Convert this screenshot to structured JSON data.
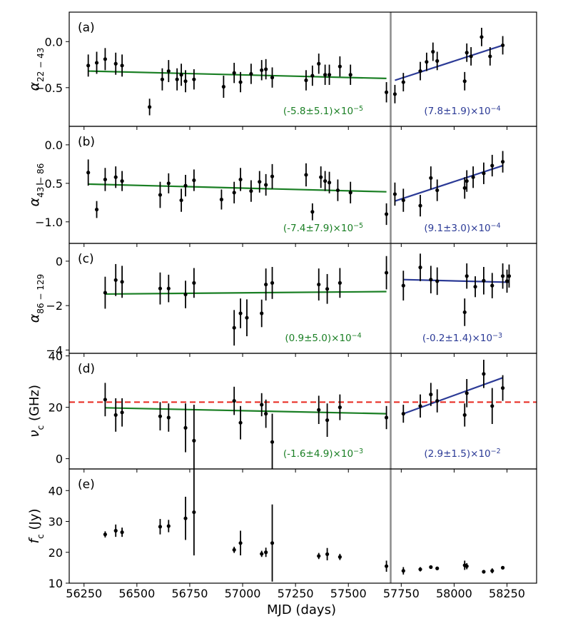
{
  "chart_data": {
    "type": "scatter",
    "xlabel": "MJD (days)",
    "xlim": [
      56180,
      58390
    ],
    "x_ticks": [
      56250,
      56500,
      56750,
      57000,
      57250,
      57500,
      57750,
      58000,
      58250
    ],
    "divider_x": 57700,
    "colors": {
      "green": "#1a7f24",
      "blue": "#2b3a96",
      "red": "#e8261c",
      "divider": "#8c8c8c",
      "points": "#000000"
    },
    "panels": [
      {
        "label": "(a)",
        "ylabel_main": "α",
        "ylabel_sub": "22 − 43",
        "ylim": [
          -0.92,
          0.32
        ],
        "y_ticks": [
          0.0,
          -0.5
        ],
        "y_tick_labels": [
          "0.0",
          "−0.5"
        ],
        "points": [
          {
            "x": 56270,
            "y": -0.26,
            "err": 0.12
          },
          {
            "x": 56310,
            "y": -0.23,
            "err": 0.12
          },
          {
            "x": 56350,
            "y": -0.19,
            "err": 0.12
          },
          {
            "x": 56400,
            "y": -0.24,
            "err": 0.12
          },
          {
            "x": 56430,
            "y": -0.26,
            "err": 0.12
          },
          {
            "x": 56560,
            "y": -0.71,
            "err": 0.09
          },
          {
            "x": 56620,
            "y": -0.41,
            "err": 0.12
          },
          {
            "x": 56650,
            "y": -0.32,
            "err": 0.12
          },
          {
            "x": 56690,
            "y": -0.41,
            "err": 0.12
          },
          {
            "x": 56710,
            "y": -0.36,
            "err": 0.12
          },
          {
            "x": 56730,
            "y": -0.43,
            "err": 0.12
          },
          {
            "x": 56770,
            "y": -0.41,
            "err": 0.11
          },
          {
            "x": 56910,
            "y": -0.49,
            "err": 0.12
          },
          {
            "x": 56960,
            "y": -0.34,
            "err": 0.11
          },
          {
            "x": 56990,
            "y": -0.44,
            "err": 0.11
          },
          {
            "x": 57040,
            "y": -0.35,
            "err": 0.11
          },
          {
            "x": 57090,
            "y": -0.31,
            "err": 0.11
          },
          {
            "x": 57110,
            "y": -0.3,
            "err": 0.11
          },
          {
            "x": 57140,
            "y": -0.39,
            "err": 0.11
          },
          {
            "x": 57300,
            "y": -0.42,
            "err": 0.11
          },
          {
            "x": 57330,
            "y": -0.37,
            "err": 0.11
          },
          {
            "x": 57360,
            "y": -0.24,
            "err": 0.11
          },
          {
            "x": 57390,
            "y": -0.36,
            "err": 0.11
          },
          {
            "x": 57410,
            "y": -0.36,
            "err": 0.11
          },
          {
            "x": 57460,
            "y": -0.27,
            "err": 0.11
          },
          {
            "x": 57510,
            "y": -0.36,
            "err": 0.11
          },
          {
            "x": 57680,
            "y": -0.55,
            "err": 0.11
          },
          {
            "x": 57720,
            "y": -0.57,
            "err": 0.1
          },
          {
            "x": 57760,
            "y": -0.44,
            "err": 0.1
          },
          {
            "x": 57840,
            "y": -0.32,
            "err": 0.1
          },
          {
            "x": 57870,
            "y": -0.22,
            "err": 0.1
          },
          {
            "x": 57900,
            "y": -0.11,
            "err": 0.1
          },
          {
            "x": 57920,
            "y": -0.21,
            "err": 0.1
          },
          {
            "x": 58050,
            "y": -0.43,
            "err": 0.1
          },
          {
            "x": 58060,
            "y": -0.12,
            "err": 0.1
          },
          {
            "x": 58080,
            "y": -0.16,
            "err": 0.1
          },
          {
            "x": 58130,
            "y": 0.05,
            "err": 0.1
          },
          {
            "x": 58170,
            "y": -0.16,
            "err": 0.1
          },
          {
            "x": 58230,
            "y": -0.04,
            "err": 0.1
          }
        ],
        "fit_green": [
          [
            56270,
            -0.32
          ],
          [
            57680,
            -0.4
          ]
        ],
        "fit_blue": [
          [
            57720,
            -0.42
          ],
          [
            58230,
            -0.04
          ]
        ],
        "ann_green": "(-5.8±5.1)×10",
        "ann_green_exp": "−5",
        "ann_blue": "(7.8±1.9)×10",
        "ann_blue_exp": "−4"
      },
      {
        "label": "(b)",
        "ylabel_main": "α",
        "ylabel_sub": "43 − 86",
        "ylim": [
          -1.28,
          0.24
        ],
        "y_ticks": [
          0.0,
          -0.5,
          -1.0
        ],
        "y_tick_labels": [
          "0.0",
          "−0.5",
          "−1.0"
        ],
        "points": [
          {
            "x": 56270,
            "y": -0.36,
            "err": 0.17
          },
          {
            "x": 56310,
            "y": -0.84,
            "err": 0.11
          },
          {
            "x": 56350,
            "y": -0.45,
            "err": 0.15
          },
          {
            "x": 56400,
            "y": -0.42,
            "err": 0.14
          },
          {
            "x": 56430,
            "y": -0.47,
            "err": 0.13
          },
          {
            "x": 56610,
            "y": -0.65,
            "err": 0.17
          },
          {
            "x": 56650,
            "y": -0.5,
            "err": 0.13
          },
          {
            "x": 56710,
            "y": -0.72,
            "err": 0.15
          },
          {
            "x": 56730,
            "y": -0.53,
            "err": 0.14
          },
          {
            "x": 56770,
            "y": -0.46,
            "err": 0.14
          },
          {
            "x": 56900,
            "y": -0.71,
            "err": 0.13
          },
          {
            "x": 56960,
            "y": -0.62,
            "err": 0.14
          },
          {
            "x": 56990,
            "y": -0.45,
            "err": 0.15
          },
          {
            "x": 57040,
            "y": -0.6,
            "err": 0.14
          },
          {
            "x": 57080,
            "y": -0.48,
            "err": 0.14
          },
          {
            "x": 57110,
            "y": -0.52,
            "err": 0.14
          },
          {
            "x": 57140,
            "y": -0.41,
            "err": 0.16
          },
          {
            "x": 57300,
            "y": -0.39,
            "err": 0.15
          },
          {
            "x": 57330,
            "y": -0.87,
            "err": 0.11
          },
          {
            "x": 57370,
            "y": -0.42,
            "err": 0.14
          },
          {
            "x": 57390,
            "y": -0.47,
            "err": 0.13
          },
          {
            "x": 57410,
            "y": -0.49,
            "err": 0.14
          },
          {
            "x": 57450,
            "y": -0.59,
            "err": 0.14
          },
          {
            "x": 57510,
            "y": -0.62,
            "err": 0.14
          },
          {
            "x": 57680,
            "y": -0.9,
            "err": 0.14
          },
          {
            "x": 57720,
            "y": -0.64,
            "err": 0.15
          },
          {
            "x": 57760,
            "y": -0.72,
            "err": 0.15
          },
          {
            "x": 57840,
            "y": -0.79,
            "err": 0.14
          },
          {
            "x": 57890,
            "y": -0.43,
            "err": 0.15
          },
          {
            "x": 57920,
            "y": -0.59,
            "err": 0.14
          },
          {
            "x": 58050,
            "y": -0.56,
            "err": 0.14
          },
          {
            "x": 58060,
            "y": -0.47,
            "err": 0.14
          },
          {
            "x": 58090,
            "y": -0.42,
            "err": 0.14
          },
          {
            "x": 58140,
            "y": -0.37,
            "err": 0.14
          },
          {
            "x": 58180,
            "y": -0.27,
            "err": 0.14
          },
          {
            "x": 58230,
            "y": -0.22,
            "err": 0.14
          }
        ],
        "fit_green": [
          [
            56270,
            -0.51
          ],
          [
            57680,
            -0.61
          ]
        ],
        "fit_blue": [
          [
            57720,
            -0.73
          ],
          [
            58230,
            -0.27
          ]
        ],
        "ann_green": "(-7.4±7.9)×10",
        "ann_green_exp": "−5",
        "ann_blue": "(9.1±3.0)×10",
        "ann_blue_exp": "−4"
      },
      {
        "label": "(c)",
        "ylabel_main": "α",
        "ylabel_sub": "86 − 129",
        "ylim": [
          -4.15,
          0.8
        ],
        "y_ticks": [
          0,
          -2,
          -4
        ],
        "y_tick_labels": [
          "0",
          "−2",
          "−4"
        ],
        "points": [
          {
            "x": 56350,
            "y": -1.42,
            "err": 0.72
          },
          {
            "x": 56400,
            "y": -0.85,
            "err": 0.72
          },
          {
            "x": 56430,
            "y": -0.93,
            "err": 0.72
          },
          {
            "x": 56610,
            "y": -1.23,
            "err": 0.72
          },
          {
            "x": 56650,
            "y": -1.23,
            "err": 0.62
          },
          {
            "x": 56730,
            "y": -1.5,
            "err": 0.62
          },
          {
            "x": 56770,
            "y": -0.98,
            "err": 0.67
          },
          {
            "x": 56960,
            "y": -3.0,
            "err": 0.8
          },
          {
            "x": 56990,
            "y": -2.35,
            "err": 0.67
          },
          {
            "x": 57020,
            "y": -2.55,
            "err": 0.83
          },
          {
            "x": 57090,
            "y": -2.35,
            "err": 0.62
          },
          {
            "x": 57110,
            "y": -1.05,
            "err": 0.72
          },
          {
            "x": 57140,
            "y": -0.98,
            "err": 0.72
          },
          {
            "x": 57360,
            "y": -1.05,
            "err": 0.72
          },
          {
            "x": 57400,
            "y": -1.25,
            "err": 0.67
          },
          {
            "x": 57460,
            "y": -0.98,
            "err": 0.67
          },
          {
            "x": 57680,
            "y": -0.52,
            "err": 0.75
          },
          {
            "x": 57760,
            "y": -1.1,
            "err": 0.67
          },
          {
            "x": 57840,
            "y": -0.28,
            "err": 0.62
          },
          {
            "x": 57890,
            "y": -0.83,
            "err": 0.62
          },
          {
            "x": 57920,
            "y": -0.9,
            "err": 0.62
          },
          {
            "x": 58050,
            "y": -2.3,
            "err": 0.62
          },
          {
            "x": 58060,
            "y": -0.67,
            "err": 0.57
          },
          {
            "x": 58100,
            "y": -1.15,
            "err": 0.47
          },
          {
            "x": 58140,
            "y": -0.88,
            "err": 0.62
          },
          {
            "x": 58180,
            "y": -1.1,
            "err": 0.57
          },
          {
            "x": 58230,
            "y": -0.67,
            "err": 0.57
          },
          {
            "x": 58250,
            "y": -0.9,
            "err": 0.52
          },
          {
            "x": 58260,
            "y": -0.67,
            "err": 0.52
          }
        ],
        "fit_green": [
          [
            56350,
            -1.48
          ],
          [
            57680,
            -1.37
          ]
        ],
        "fit_blue": [
          [
            57760,
            -0.83
          ],
          [
            58260,
            -0.95
          ]
        ],
        "ann_green": "(0.9±5.0)×10",
        "ann_green_exp": "−4",
        "ann_blue": "(-0.2±1.4)×10",
        "ann_blue_exp": "−3"
      },
      {
        "label": "(d)",
        "ylabel_main": "ν",
        "ylabel_sub": "c",
        "ylabel_tail": " (GHz)",
        "ylim": [
          -4,
          41
        ],
        "y_ticks": [
          0,
          20,
          40
        ],
        "y_tick_labels": [
          "0",
          "20",
          "40"
        ],
        "red_line_y": 22,
        "points": [
          {
            "x": 56350,
            "y": 23.0,
            "err": 6.5
          },
          {
            "x": 56400,
            "y": 17.0,
            "err": 6.5
          },
          {
            "x": 56430,
            "y": 18.0,
            "err": 5.5
          },
          {
            "x": 56610,
            "y": 16.5,
            "err": 5.5
          },
          {
            "x": 56650,
            "y": 16.0,
            "err": 5.5
          },
          {
            "x": 56730,
            "y": 12.0,
            "err": 9.5
          },
          {
            "x": 56770,
            "y": 7.0,
            "err": 14.0
          },
          {
            "x": 56960,
            "y": 22.5,
            "err": 5.5
          },
          {
            "x": 56990,
            "y": 14.0,
            "err": 6.5
          },
          {
            "x": 57090,
            "y": 21.0,
            "err": 4.5
          },
          {
            "x": 57110,
            "y": 17.5,
            "err": 5.5
          },
          {
            "x": 57140,
            "y": 6.5,
            "err": 11.0
          },
          {
            "x": 57360,
            "y": 19.0,
            "err": 5.5
          },
          {
            "x": 57400,
            "y": 15.0,
            "err": 6.5
          },
          {
            "x": 57460,
            "y": 20.0,
            "err": 5.0
          },
          {
            "x": 57680,
            "y": 16.0,
            "err": 4.5
          },
          {
            "x": 57760,
            "y": 17.5,
            "err": 3.5
          },
          {
            "x": 57840,
            "y": 20.5,
            "err": 4.5
          },
          {
            "x": 57890,
            "y": 25.0,
            "err": 4.5
          },
          {
            "x": 57920,
            "y": 22.5,
            "err": 4.5
          },
          {
            "x": 58050,
            "y": 17.0,
            "err": 4.5
          },
          {
            "x": 58060,
            "y": 25.5,
            "err": 5.5
          },
          {
            "x": 58140,
            "y": 33.0,
            "err": 5.5
          },
          {
            "x": 58180,
            "y": 20.5,
            "err": 7.0
          },
          {
            "x": 58230,
            "y": 27.5,
            "err": 5.0
          }
        ],
        "fit_green": [
          [
            56350,
            19.8
          ],
          [
            57680,
            17.5
          ]
        ],
        "fit_blue": [
          [
            57760,
            17.5
          ],
          [
            58230,
            31.5
          ]
        ],
        "ann_green": "(-1.6±4.9)×10",
        "ann_green_exp": "−3",
        "ann_blue": "(2.9±1.5)×10",
        "ann_blue_exp": "−2"
      },
      {
        "label": "(e)",
        "ylabel_main": "f",
        "ylabel_sub": "c",
        "ylabel_tail": " (Jy)",
        "ylim": [
          10,
          47
        ],
        "y_ticks": [
          10,
          20,
          30,
          40
        ],
        "y_tick_labels": [
          "10",
          "20",
          "30",
          "40"
        ],
        "points": [
          {
            "x": 56350,
            "y": 25.8,
            "err": 1.0
          },
          {
            "x": 56400,
            "y": 27.0,
            "err": 2.0
          },
          {
            "x": 56430,
            "y": 26.5,
            "err": 1.5
          },
          {
            "x": 56610,
            "y": 28.3,
            "err": 2.5
          },
          {
            "x": 56650,
            "y": 28.5,
            "err": 2.0
          },
          {
            "x": 56730,
            "y": 31.0,
            "err": 7.0
          },
          {
            "x": 56770,
            "y": 33.0,
            "err": 14.0
          },
          {
            "x": 56960,
            "y": 20.8,
            "err": 1.0
          },
          {
            "x": 56990,
            "y": 23.0,
            "err": 4.0
          },
          {
            "x": 57090,
            "y": 19.5,
            "err": 1.0
          },
          {
            "x": 57110,
            "y": 20.0,
            "err": 1.5
          },
          {
            "x": 57140,
            "y": 23.0,
            "err": 12.5
          },
          {
            "x": 57360,
            "y": 18.8,
            "err": 1.0
          },
          {
            "x": 57400,
            "y": 19.4,
            "err": 2.0
          },
          {
            "x": 57460,
            "y": 18.5,
            "err": 1.0
          },
          {
            "x": 57680,
            "y": 15.5,
            "err": 1.8
          },
          {
            "x": 57760,
            "y": 14.0,
            "err": 1.2
          },
          {
            "x": 57840,
            "y": 14.5,
            "err": 0.7
          },
          {
            "x": 57890,
            "y": 15.2,
            "err": 0.5
          },
          {
            "x": 57920,
            "y": 14.8,
            "err": 0.5
          },
          {
            "x": 58050,
            "y": 15.8,
            "err": 1.5
          },
          {
            "x": 58060,
            "y": 15.5,
            "err": 1.0
          },
          {
            "x": 58140,
            "y": 13.7,
            "err": 0.5
          },
          {
            "x": 58180,
            "y": 14.0,
            "err": 0.8
          },
          {
            "x": 58230,
            "y": 15.0,
            "err": 0.5
          }
        ]
      }
    ]
  }
}
